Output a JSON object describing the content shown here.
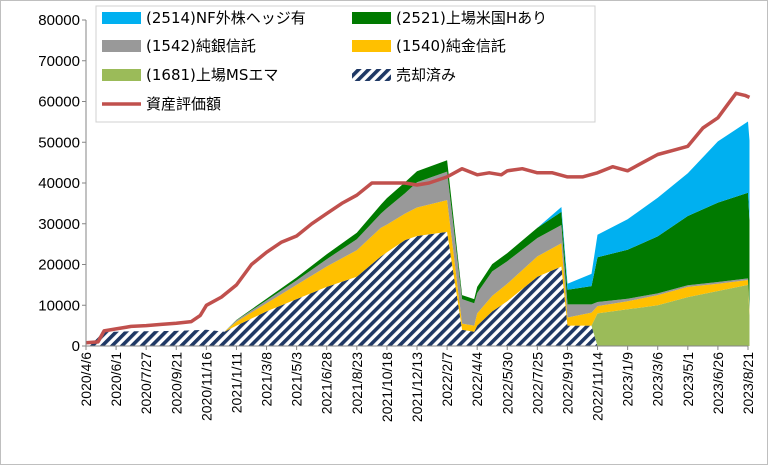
{
  "chart_data": {
    "type": "area",
    "title": "",
    "xlabel": "",
    "ylabel": "",
    "ylim": [
      0,
      80000
    ],
    "yticks": [
      "0",
      "10000",
      "20000",
      "30000",
      "40000",
      "50000",
      "60000",
      "70000",
      "80000"
    ],
    "xtick_labels": [
      "2020/4/6",
      "2020/6/1",
      "2020/7/27",
      "2020/9/21",
      "2020/11/16",
      "2021/1/11",
      "2021/3/8",
      "2021/5/3",
      "2021/6/28",
      "2021/8/23",
      "2021/10/18",
      "2021/12/13",
      "2022/2/7",
      "2022/4/4",
      "2022/5/30",
      "2022/7/25",
      "2022/9/19",
      "2022/11/14",
      "2023/1/9",
      "2023/3/6",
      "2023/5/1",
      "2023/6/26",
      "2023/8/21"
    ],
    "x": [
      0,
      0.6,
      1,
      1.5,
      2,
      3,
      4,
      4.6,
      5,
      6,
      7,
      8,
      9,
      9.8,
      10,
      10.6,
      11,
      12,
      12.5,
      12.9,
      13,
      13.5,
      14,
      15,
      15.8,
      16,
      16.8,
      17,
      18,
      19,
      20,
      21,
      22,
      22.05
    ],
    "series": [
      {
        "name": "(1681)上場MSエマ",
        "color": "#9BBB59",
        "values": [
          0,
          0,
          0,
          0,
          0,
          0,
          0,
          0,
          0,
          0,
          0,
          0,
          0,
          0,
          0,
          0,
          0,
          0,
          0,
          0,
          0,
          0,
          0,
          0,
          0,
          0,
          0,
          8000,
          9000,
          10000,
          12000,
          13500,
          15000,
          7500
        ]
      },
      {
        "name": "(1540)純金信託",
        "color": "#FFC000",
        "values": [
          0,
          0,
          0,
          0,
          0,
          0,
          0,
          0,
          1000,
          2000,
          3500,
          5000,
          6500,
          7000,
          6800,
          6500,
          7000,
          7800,
          1500,
          1500,
          3000,
          3800,
          4300,
          5000,
          5700,
          2000,
          3200,
          1800,
          2000,
          2500,
          2500,
          1800,
          1200,
          1000
        ]
      },
      {
        "name": "(1542)純銀信託",
        "color": "#999999",
        "values": [
          0,
          0,
          0,
          0,
          0,
          0,
          0,
          0,
          300,
          700,
          1100,
          1800,
          2700,
          3500,
          4000,
          5000,
          6200,
          7000,
          6000,
          5500,
          5000,
          6000,
          5500,
          4500,
          4500,
          3200,
          2000,
          1000,
          600,
          400,
          400,
          400,
          400,
          400
        ]
      },
      {
        "name": "(2521)上場米国Hあり",
        "color": "#007A00",
        "values": [
          0,
          0,
          0,
          0,
          0,
          0,
          0,
          0,
          100,
          400,
          700,
          1200,
          1600,
          2200,
          2500,
          2700,
          2700,
          2800,
          1000,
          1000,
          1500,
          1800,
          2000,
          2500,
          3200,
          3600,
          4500,
          11000,
          12000,
          14000,
          17000,
          19500,
          21000,
          22000
        ]
      },
      {
        "name": "(2514)NF外株ヘッジ有",
        "color": "#00B0F0",
        "values": [
          0,
          0,
          0,
          0,
          0,
          0,
          0,
          0,
          0,
          0,
          0,
          0,
          0,
          0,
          0,
          0,
          0,
          0,
          0,
          0,
          0,
          0,
          0,
          0,
          1200,
          1500,
          3000,
          5500,
          7500,
          9500,
          10500,
          15000,
          17500,
          19500
        ]
      },
      {
        "name": "売却済み",
        "color": "#1F3864",
        "pattern": "hatch",
        "values": [
          0,
          3500,
          3500,
          3600,
          3600,
          3700,
          4000,
          3500,
          5000,
          8500,
          11500,
          14500,
          17000,
          22000,
          23000,
          26000,
          27000,
          28000,
          4000,
          3500,
          5000,
          8500,
          11000,
          17000,
          19500,
          5000,
          5000,
          0,
          0,
          0,
          0,
          0,
          0,
          0
        ]
      }
    ],
    "line": {
      "name": "資産評価額",
      "color": "#C0504D",
      "x": [
        0,
        0.4,
        0.6,
        1,
        1.5,
        2,
        2.5,
        3,
        3.5,
        3.8,
        4,
        4.5,
        5,
        5.5,
        6,
        6.5,
        7,
        7.5,
        8,
        8.5,
        9,
        9.5,
        10,
        10.6,
        11,
        11.4,
        12,
        12.5,
        13,
        13.4,
        13.8,
        14,
        14.5,
        15,
        15.5,
        16,
        16.5,
        17,
        17.5,
        18,
        18.5,
        19,
        19.5,
        20,
        20.5,
        21,
        21.3,
        21.6,
        21.9,
        22.05
      ],
      "values": [
        800,
        1000,
        3700,
        4200,
        4800,
        5000,
        5300,
        5600,
        6000,
        7500,
        10000,
        12000,
        15000,
        20000,
        23000,
        25500,
        27000,
        30000,
        32500,
        35000,
        37000,
        40000,
        40000,
        40000,
        39500,
        40000,
        41500,
        43500,
        42000,
        42500,
        42000,
        43000,
        43500,
        42500,
        42500,
        41500,
        41500,
        42500,
        44000,
        43000,
        45000,
        47000,
        48000,
        49000,
        53500,
        56000,
        59000,
        62000,
        61500,
        61000
      ]
    },
    "legend": {
      "placement": "top-left",
      "entries": [
        {
          "label": "(2514)NF外株ヘッジ有",
          "color": "#00B0F0",
          "kind": "box"
        },
        {
          "label": "(2521)上場米国Hあり",
          "color": "#007A00",
          "kind": "box"
        },
        {
          "label": "(1542)純銀信託",
          "color": "#999999",
          "kind": "box"
        },
        {
          "label": "(1540)純金信託",
          "color": "#FFC000",
          "kind": "box"
        },
        {
          "label": "(1681)上場MSエマ",
          "color": "#9BBB59",
          "kind": "box"
        },
        {
          "label": "売却済み",
          "color": "#1F3864",
          "kind": "hatch"
        },
        {
          "label": "資産評価額",
          "color": "#C0504D",
          "kind": "line"
        }
      ]
    }
  }
}
